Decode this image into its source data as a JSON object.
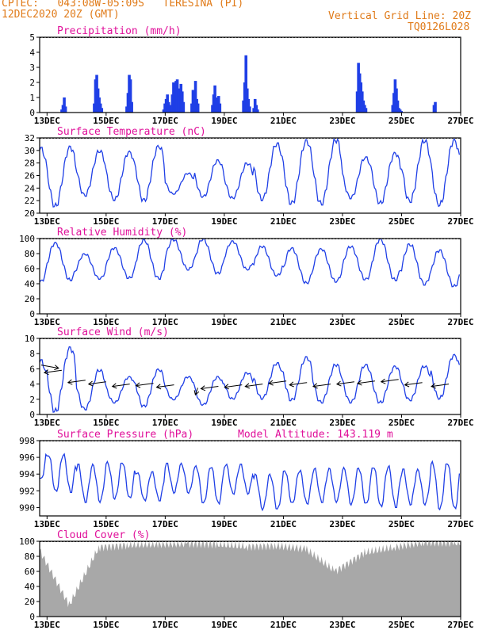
{
  "header": {
    "line1": "CPTEC:   043:08W-05:09S   TERESINA (PI)",
    "line2": "12DEC2020 20Z (GMT)",
    "grid_line": "Vertical Grid Line: 20Z",
    "code": "TQ0126L028"
  },
  "colors": {
    "header": "#e07b1a",
    "panel_title": "#e0109a",
    "series": "#1f3fe6",
    "cloud": "#a8a8a8",
    "wind_arrow": "#000000",
    "frame": "#000000"
  },
  "chart_data": [
    {
      "type": "bar",
      "title": "Precipitation (mm/h)",
      "x_tick_labels": [
        "13DEC",
        "15DEC",
        "17DEC",
        "19DEC",
        "21DEC",
        "23DEC",
        "25DEC",
        "27DEC"
      ],
      "ylim": [
        0,
        5
      ],
      "y_ticks": [
        0,
        1,
        2,
        3,
        4,
        5
      ],
      "series_color": "#1f3fe6",
      "events": [
        {
          "day": 13.5,
          "values": [
            0.2,
            0.5,
            1.0,
            0.4
          ]
        },
        {
          "day": 14.6,
          "values": [
            0.6,
            2.2,
            2.5,
            1.6,
            1.0,
            0.6,
            0.3
          ]
        },
        {
          "day": 15.7,
          "values": [
            0.4,
            1.3,
            2.5,
            2.2,
            0.7
          ]
        },
        {
          "day": 16.95,
          "values": [
            0.2,
            0.6,
            0.9,
            1.2,
            0.7
          ]
        },
        {
          "day": 17.2,
          "values": [
            0.5,
            1.2,
            2.0,
            1.7,
            2.1,
            2.2,
            1.6,
            1.1,
            1.9,
            1.4,
            0.7
          ]
        },
        {
          "day": 17.9,
          "values": [
            0.6,
            1.5,
            1.3,
            2.1,
            0.9,
            0.6
          ]
        },
        {
          "day": 18.6,
          "values": [
            0.5,
            1.2,
            1.8,
            1.0,
            0.9,
            1.1,
            0.6
          ]
        },
        {
          "day": 19.65,
          "values": [
            0.8,
            2.0,
            3.8,
            1.6,
            0.9,
            0.4
          ]
        },
        {
          "day": 20.0,
          "values": [
            0.3,
            0.9,
            0.5,
            0.2
          ]
        },
        {
          "day": 23.5,
          "values": [
            1.4,
            3.3,
            2.6,
            2.0,
            1.4,
            0.8,
            0.5,
            0.3
          ]
        },
        {
          "day": 24.7,
          "values": [
            0.5,
            1.3,
            2.2,
            1.6,
            0.8,
            0.3,
            0.2,
            0.1
          ]
        },
        {
          "day": 26.1,
          "values": [
            0.5,
            0.7
          ]
        }
      ]
    },
    {
      "type": "line",
      "title": "Surface Temperature (nC)",
      "x_tick_labels": [
        "13DEC",
        "15DEC",
        "17DEC",
        "19DEC",
        "21DEC",
        "23DEC",
        "25DEC",
        "27DEC"
      ],
      "ylim": [
        20,
        32
      ],
      "y_ticks": [
        20,
        22,
        24,
        26,
        28,
        30,
        32
      ],
      "daily_max": [
        30.5,
        30.7,
        30.0,
        29.9,
        30.8,
        26.4,
        28.5,
        28.0,
        31.2,
        31.7,
        31.8,
        29.0,
        29.7,
        31.7,
        31.8
      ],
      "daily_min": [
        21.7,
        21.0,
        22.7,
        22.0,
        21.9,
        23.0,
        22.5,
        22.3,
        22.0,
        21.4,
        21.3,
        22.3,
        21.5,
        21.7,
        21.1
      ]
    },
    {
      "type": "line",
      "title": "Relative Humidity (%)",
      "x_tick_labels": [
        "13DEC",
        "15DEC",
        "17DEC",
        "19DEC",
        "21DEC",
        "23DEC",
        "25DEC",
        "27DEC"
      ],
      "ylim": [
        0,
        100
      ],
      "y_ticks": [
        0,
        20,
        40,
        60,
        80,
        100
      ],
      "daily_max": [
        92,
        95,
        80,
        88,
        99,
        99,
        100,
        97,
        90,
        88,
        87,
        90,
        100,
        93,
        85
      ],
      "daily_min": [
        42,
        44,
        46,
        47,
        46,
        58,
        53,
        58,
        50,
        40,
        42,
        45,
        44,
        38,
        36
      ]
    },
    {
      "type": "line",
      "title": "Surface Wind (m/s)",
      "x_tick_labels": [
        "13DEC",
        "15DEC",
        "17DEC",
        "19DEC",
        "21DEC",
        "23DEC",
        "25DEC",
        "27DEC"
      ],
      "ylim": [
        0,
        10
      ],
      "y_ticks": [
        0,
        2,
        4,
        6,
        8,
        10
      ],
      "daily_max": [
        7.2,
        8.9,
        5.9,
        5.0,
        6.0,
        5.0,
        5.0,
        5.5,
        6.8,
        7.6,
        6.6,
        6.6,
        6.4,
        6.4,
        7.9
      ],
      "daily_min": [
        0.5,
        0.3,
        0.6,
        1.5,
        1.0,
        1.9,
        1.2,
        2.0,
        2.0,
        1.8,
        1.5,
        1.5,
        1.5,
        1.8,
        2.0
      ],
      "wind_barbs": [
        {
          "day": 12.8,
          "dir": "from-west",
          "speed": 6.5
        },
        {
          "day": 13.5,
          "dir": "from-east",
          "speed": 5.8
        },
        {
          "day": 14.3,
          "dir": "from-east",
          "speed": 4.5
        },
        {
          "day": 15.0,
          "dir": "from-east",
          "speed": 4.3
        },
        {
          "day": 15.8,
          "dir": "from-east",
          "speed": 4.0
        },
        {
          "day": 16.6,
          "dir": "from-east",
          "speed": 4.1
        },
        {
          "day": 17.3,
          "dir": "from-east",
          "speed": 3.9
        },
        {
          "day": 18.1,
          "dir": "from-north",
          "speed": 3.5
        },
        {
          "day": 18.8,
          "dir": "from-east",
          "speed": 3.7
        },
        {
          "day": 19.6,
          "dir": "from-east",
          "speed": 3.9
        },
        {
          "day": 20.3,
          "dir": "from-east",
          "speed": 4.0
        },
        {
          "day": 21.1,
          "dir": "from-east",
          "speed": 4.4
        },
        {
          "day": 21.8,
          "dir": "from-east",
          "speed": 4.2
        },
        {
          "day": 22.6,
          "dir": "from-east",
          "speed": 4.0
        },
        {
          "day": 23.4,
          "dir": "from-east",
          "speed": 4.3
        },
        {
          "day": 24.1,
          "dir": "from-east",
          "speed": 4.4
        },
        {
          "day": 24.9,
          "dir": "from-east",
          "speed": 4.6
        },
        {
          "day": 25.7,
          "dir": "from-east",
          "speed": 4.2
        },
        {
          "day": 26.6,
          "dir": "from-east",
          "speed": 4.0
        }
      ]
    },
    {
      "type": "line",
      "title": "Surface Pressure (hPa)",
      "subtitle": "Model Altitude: 143.119 m",
      "x_tick_labels": [
        "13DEC",
        "15DEC",
        "17DEC",
        "19DEC",
        "21DEC",
        "23DEC",
        "25DEC",
        "27DEC"
      ],
      "ylim": [
        989,
        998
      ],
      "y_ticks": [
        990,
        992,
        994,
        996,
        998
      ],
      "daily_max": [
        997.3,
        996.4,
        995.2,
        995.5,
        994.3,
        995.3,
        995.0,
        995.2,
        994.0,
        994.5,
        994.7,
        994.8,
        995.0,
        994.6,
        995.5
      ],
      "daily_min": [
        993.3,
        991.8,
        990.6,
        991.0,
        990.8,
        991.7,
        990.4,
        991.6,
        989.7,
        990.4,
        990.6,
        990.3,
        990.0,
        990.3,
        989.7
      ]
    },
    {
      "type": "area",
      "title": "Cloud Cover (%)",
      "x_tick_labels": [
        "13DEC",
        "15DEC",
        "17DEC",
        "19DEC",
        "21DEC",
        "23DEC",
        "25DEC",
        "27DEC"
      ],
      "ylim": [
        0,
        100
      ],
      "y_ticks": [
        0,
        20,
        40,
        60,
        80,
        100
      ],
      "series_color": "#a8a8a8",
      "daily_values": [
        88,
        15,
        92,
        95,
        96,
        97,
        96,
        93,
        94,
        90,
        60,
        85,
        92,
        99,
        98,
        97
      ]
    }
  ]
}
